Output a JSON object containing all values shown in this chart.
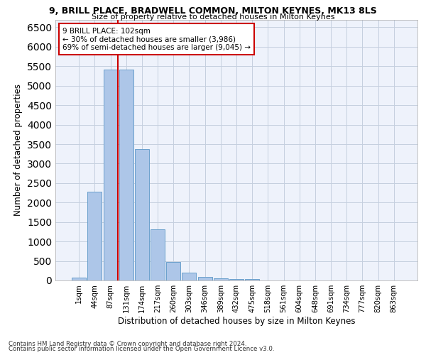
{
  "title1": "9, BRILL PLACE, BRADWELL COMMON, MILTON KEYNES, MK13 8LS",
  "title2": "Size of property relative to detached houses in Milton Keynes",
  "xlabel": "Distribution of detached houses by size in Milton Keynes",
  "ylabel": "Number of detached properties",
  "annotation_line1": "9 BRILL PLACE: 102sqm",
  "annotation_line2": "← 30% of detached houses are smaller (3,986)",
  "annotation_line3": "69% of semi-detached houses are larger (9,045) →",
  "footer1": "Contains HM Land Registry data © Crown copyright and database right 2024.",
  "footer2": "Contains public sector information licensed under the Open Government Licence v3.0.",
  "bar_labels": [
    "1sqm",
    "44sqm",
    "87sqm",
    "131sqm",
    "174sqm",
    "217sqm",
    "260sqm",
    "303sqm",
    "346sqm",
    "389sqm",
    "432sqm",
    "475sqm",
    "518sqm",
    "561sqm",
    "604sqm",
    "648sqm",
    "691sqm",
    "734sqm",
    "777sqm",
    "820sqm",
    "863sqm"
  ],
  "bar_values": [
    75,
    2280,
    5420,
    5420,
    3380,
    1310,
    480,
    195,
    95,
    60,
    40,
    30,
    0,
    0,
    0,
    0,
    0,
    0,
    0,
    0,
    0
  ],
  "bar_color": "#adc6e8",
  "bar_edge_color": "#6aa0cc",
  "ylim": [
    0,
    6700
  ],
  "yticks": [
    0,
    500,
    1000,
    1500,
    2000,
    2500,
    3000,
    3500,
    4000,
    4500,
    5000,
    5500,
    6000,
    6500
  ],
  "vline_x": 2.48,
  "vline_color": "#cc0000",
  "annotation_box_color": "#cc0000",
  "background_color": "#eef2fb",
  "grid_color": "#c5cfdf"
}
